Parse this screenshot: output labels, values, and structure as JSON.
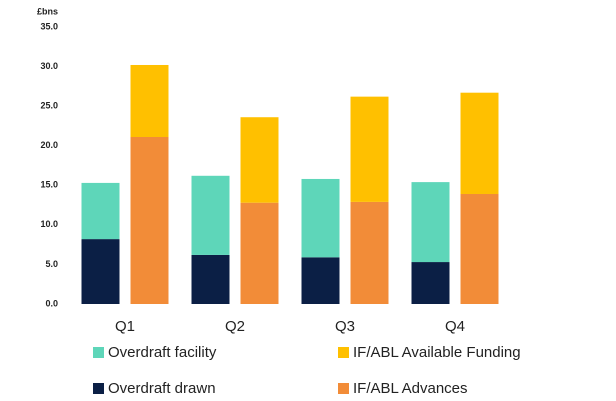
{
  "chart_data": {
    "type": "bar",
    "stacked": true,
    "y_unit_label": "£bns",
    "categories": [
      "Q1",
      "Q2",
      "Q3",
      "Q4"
    ],
    "series": [
      {
        "name": "Overdraft drawn",
        "color": "#0b1f45",
        "stack": 0,
        "values": [
          8.2,
          6.2,
          5.9,
          5.3
        ]
      },
      {
        "name": "IF/ABL Advances",
        "color": "#f28c38",
        "stack": 1,
        "values": [
          21.1,
          12.8,
          12.9,
          13.9
        ]
      },
      {
        "name": "Overdraft facility",
        "color": "#5ed6b9",
        "stack": 0,
        "values": [
          7.1,
          10.0,
          9.9,
          10.1
        ]
      },
      {
        "name": "IF/ABL Available Funding",
        "color": "#ffc000",
        "stack": 1,
        "values": [
          9.1,
          10.8,
          13.3,
          12.8
        ]
      }
    ],
    "ylim": [
      0,
      35
    ],
    "yticks": [
      {
        "value": 0,
        "label": "0.0"
      },
      {
        "value": 5,
        "label": "5.0"
      },
      {
        "value": 10,
        "label": "10.0"
      },
      {
        "value": 15,
        "label": "15.0"
      },
      {
        "value": 20,
        "label": "20.0"
      },
      {
        "value": 25,
        "label": "25.0"
      },
      {
        "value": 30,
        "label": "30.0"
      },
      {
        "value": 35,
        "label": "35.0"
      }
    ],
    "grid": false
  }
}
